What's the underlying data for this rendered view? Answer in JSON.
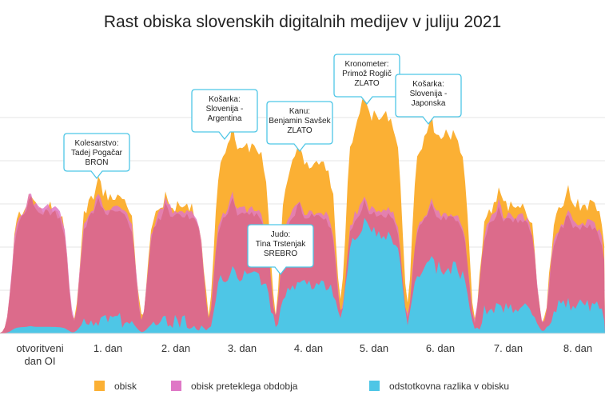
{
  "chart_data": {
    "type": "area",
    "title": "Rast obiska slovenskih digitalnih medijev v juliju 2021",
    "xlabel": "",
    "ylabel": "",
    "ylim": [
      0,
      100
    ],
    "grid": true,
    "legend_position": "bottom",
    "categories": [
      "otvoritveni dan OI",
      "1. dan",
      "2. dan",
      "3. dan",
      "4. dan",
      "5. dan",
      "6. dan",
      "7. dan",
      "8. dan"
    ],
    "series": [
      {
        "name": "obisk",
        "color": "#fbb034",
        "values": [
          58,
          64,
          58,
          85,
          78,
          100,
          91,
          58,
          59
        ]
      },
      {
        "name": "obisk preteklega obdobja",
        "color": "#df78c6",
        "values": [
          58,
          58,
          56,
          57,
          56,
          57,
          55,
          54,
          51
        ]
      },
      {
        "name": "odstotkovna razlika v obisku",
        "color": "#4ec6e6",
        "values": [
          3,
          6,
          5,
          26,
          22,
          46,
          30,
          12,
          13
        ]
      }
    ],
    "annotations": [
      {
        "category": "1. dan",
        "lines": [
          "Kolesarstvo:",
          "Tadej Pogačar",
          "BRON"
        ]
      },
      {
        "category": "3. dan",
        "lines": [
          "Košarka:",
          "Slovenija -",
          "Argentina"
        ]
      },
      {
        "category": "3. dan",
        "lines": [
          "Judo:",
          "Tina Trstenjak",
          "SREBRO"
        ]
      },
      {
        "category": "4. dan",
        "lines": [
          "Kanu:",
          "Benjamin Savšek",
          "ZLATO"
        ]
      },
      {
        "category": "5. dan",
        "lines": [
          "Kronometer:",
          "Primož Roglič",
          "ZLATO"
        ]
      },
      {
        "category": "6. dan",
        "lines": [
          "Košarka:",
          "Slovenija -",
          "Japonska"
        ]
      }
    ]
  }
}
